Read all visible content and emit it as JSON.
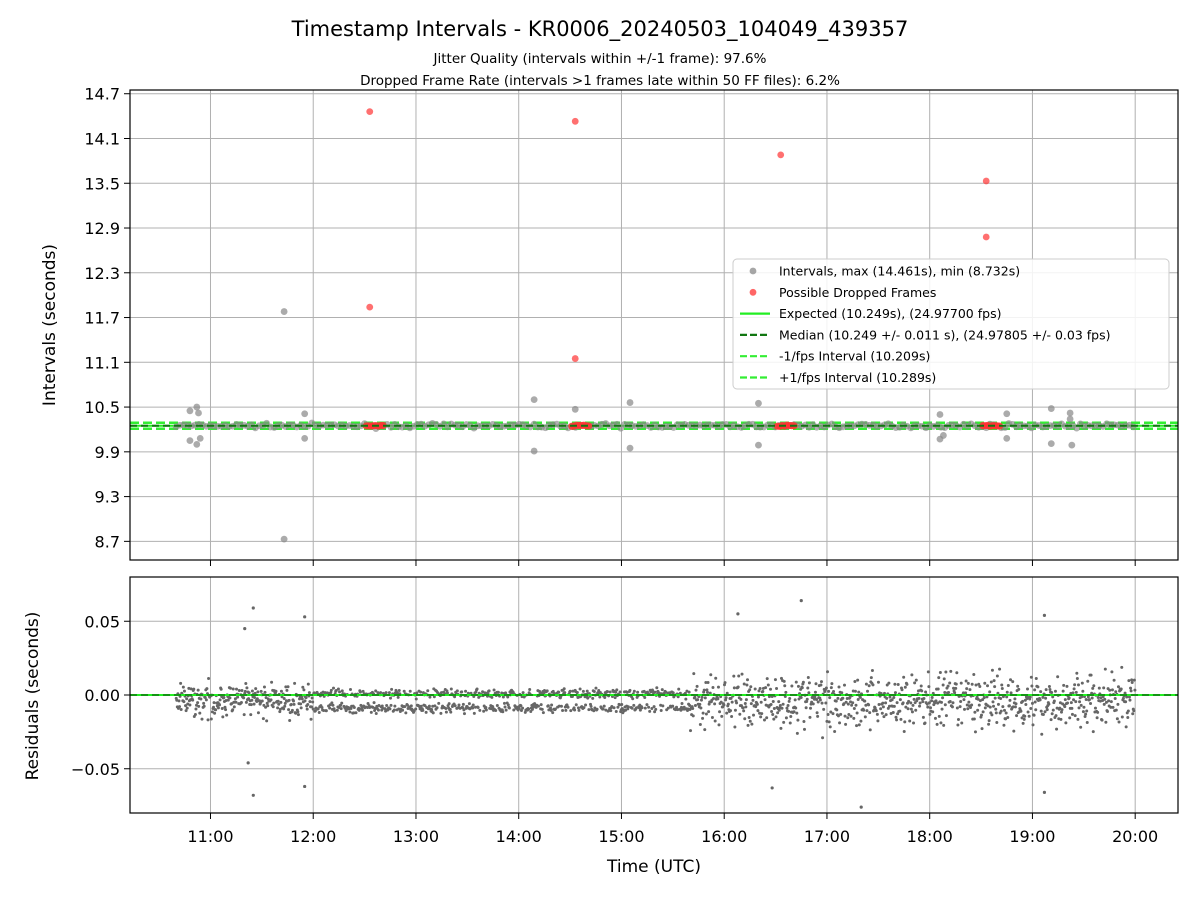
{
  "title": "Timestamp Intervals - KR0006_20240503_104049_439357",
  "subtitle_line1": "Jitter Quality (intervals within +/-1 frame): 97.6%",
  "subtitle_line2": "Dropped Frame Rate (intervals >1 frames late within 50 FF files): 6.2%",
  "colors": {
    "intervals": "#888888",
    "dropped": "#ff3333",
    "expected": "#22ee22",
    "median": "#117711",
    "fps_band": "#33ee33",
    "residuals": "#666666",
    "grid": "#b0b0b0"
  },
  "chart_data": [
    {
      "type": "scatter",
      "ylabel": "Intervals (seconds)",
      "ylim": [
        8.45,
        14.75
      ],
      "xlim": [
        "10:13",
        "20:25"
      ],
      "y_ticks": [
        "8.7",
        "9.3",
        "9.9",
        "10.5",
        "11.1",
        "11.7",
        "12.3",
        "12.9",
        "13.5",
        "14.1",
        "14.7"
      ],
      "y_tick_values": [
        8.7,
        9.3,
        9.9,
        10.5,
        11.1,
        11.7,
        12.3,
        12.9,
        13.5,
        14.1,
        14.7
      ],
      "grid": true,
      "legend_position": "center-right",
      "legend": {
        "intervals": "Intervals, max (14.461s), min (8.732s)",
        "dropped": "Possible Dropped Frames",
        "expected": "Expected (10.249s), (24.97700 fps)",
        "median": "Median (10.249 +/- 0.011 s), (24.97805 +/- 0.03 fps)",
        "minus_fps": "-1/fps Interval (10.209s)",
        "plus_fps": "+1/fps Interval (10.289s)"
      },
      "expected": 10.249,
      "median": 10.249,
      "minus_fps": 10.209,
      "plus_fps": 10.289,
      "intervals_outliers": [
        {
          "t": "10:48",
          "v": 10.45
        },
        {
          "t": "10:48",
          "v": 10.05
        },
        {
          "t": "10:52",
          "v": 10.5
        },
        {
          "t": "10:53",
          "v": 10.42
        },
        {
          "t": "10:52",
          "v": 10.0
        },
        {
          "t": "10:54",
          "v": 10.08
        },
        {
          "t": "11:43",
          "v": 11.78
        },
        {
          "t": "11:43",
          "v": 8.73
        },
        {
          "t": "11:55",
          "v": 10.41
        },
        {
          "t": "11:55",
          "v": 10.08
        },
        {
          "t": "14:09",
          "v": 10.6
        },
        {
          "t": "14:09",
          "v": 9.91
        },
        {
          "t": "14:33",
          "v": 10.47
        },
        {
          "t": "15:05",
          "v": 10.56
        },
        {
          "t": "15:05",
          "v": 9.95
        },
        {
          "t": "16:20",
          "v": 10.55
        },
        {
          "t": "16:20",
          "v": 9.99
        },
        {
          "t": "18:06",
          "v": 10.4
        },
        {
          "t": "18:06",
          "v": 10.07
        },
        {
          "t": "18:08",
          "v": 10.12
        },
        {
          "t": "18:45",
          "v": 10.41
        },
        {
          "t": "18:45",
          "v": 10.08
        },
        {
          "t": "19:11",
          "v": 10.48
        },
        {
          "t": "19:11",
          "v": 10.01
        },
        {
          "t": "19:22",
          "v": 10.42
        },
        {
          "t": "19:22",
          "v": 10.34
        },
        {
          "t": "19:23",
          "v": 9.99
        }
      ],
      "dropped_frames": [
        {
          "t": "12:33",
          "v": 14.46
        },
        {
          "t": "12:33",
          "v": 11.84
        },
        {
          "t": "14:33",
          "v": 14.33
        },
        {
          "t": "14:33",
          "v": 11.15
        },
        {
          "t": "16:33",
          "v": 13.88
        },
        {
          "t": "18:33",
          "v": 13.53
        },
        {
          "t": "18:33",
          "v": 12.78
        }
      ],
      "dropped_clusters": [
        {
          "start": "12:31",
          "end": "12:41",
          "v": 10.249
        },
        {
          "start": "14:31",
          "end": "14:41",
          "v": 10.249
        },
        {
          "start": "16:31",
          "end": "16:41",
          "v": 10.249
        },
        {
          "start": "18:31",
          "end": "18:41",
          "v": 10.249
        }
      ],
      "intervals_baseline": {
        "start": "10:40",
        "end": "20:00",
        "v": 10.249
      }
    },
    {
      "type": "scatter",
      "xlabel": "Time (UTC)",
      "ylabel": "Residuals (seconds)",
      "ylim": [
        -0.08,
        0.08
      ],
      "xlim": [
        "10:13",
        "20:25"
      ],
      "y_ticks": [
        "−0.05",
        "0.00",
        "0.05"
      ],
      "y_tick_values": [
        -0.05,
        0.0,
        0.05
      ],
      "x_ticks": [
        "11:00",
        "12:00",
        "13:00",
        "14:00",
        "15:00",
        "16:00",
        "17:00",
        "18:00",
        "19:00",
        "20:00"
      ],
      "grid": true,
      "zero_line": 0.0,
      "residual_envelope": [
        {
          "start": "10:40",
          "end": "12:00",
          "spread": 0.018
        },
        {
          "start": "12:00",
          "end": "15:40",
          "spread": 0.009
        },
        {
          "start": "15:40",
          "end": "20:00",
          "spread": 0.03
        }
      ],
      "residual_outliers": [
        {
          "t": "11:25",
          "v": 0.059
        },
        {
          "t": "11:20",
          "v": 0.045
        },
        {
          "t": "11:25",
          "v": -0.068
        },
        {
          "t": "11:22",
          "v": -0.046
        },
        {
          "t": "11:55",
          "v": 0.053
        },
        {
          "t": "11:55",
          "v": -0.062
        },
        {
          "t": "16:08",
          "v": 0.055
        },
        {
          "t": "16:28",
          "v": -0.063
        },
        {
          "t": "16:45",
          "v": 0.064
        },
        {
          "t": "17:20",
          "v": -0.076
        },
        {
          "t": "19:07",
          "v": 0.054
        },
        {
          "t": "19:07",
          "v": -0.066
        }
      ]
    }
  ]
}
